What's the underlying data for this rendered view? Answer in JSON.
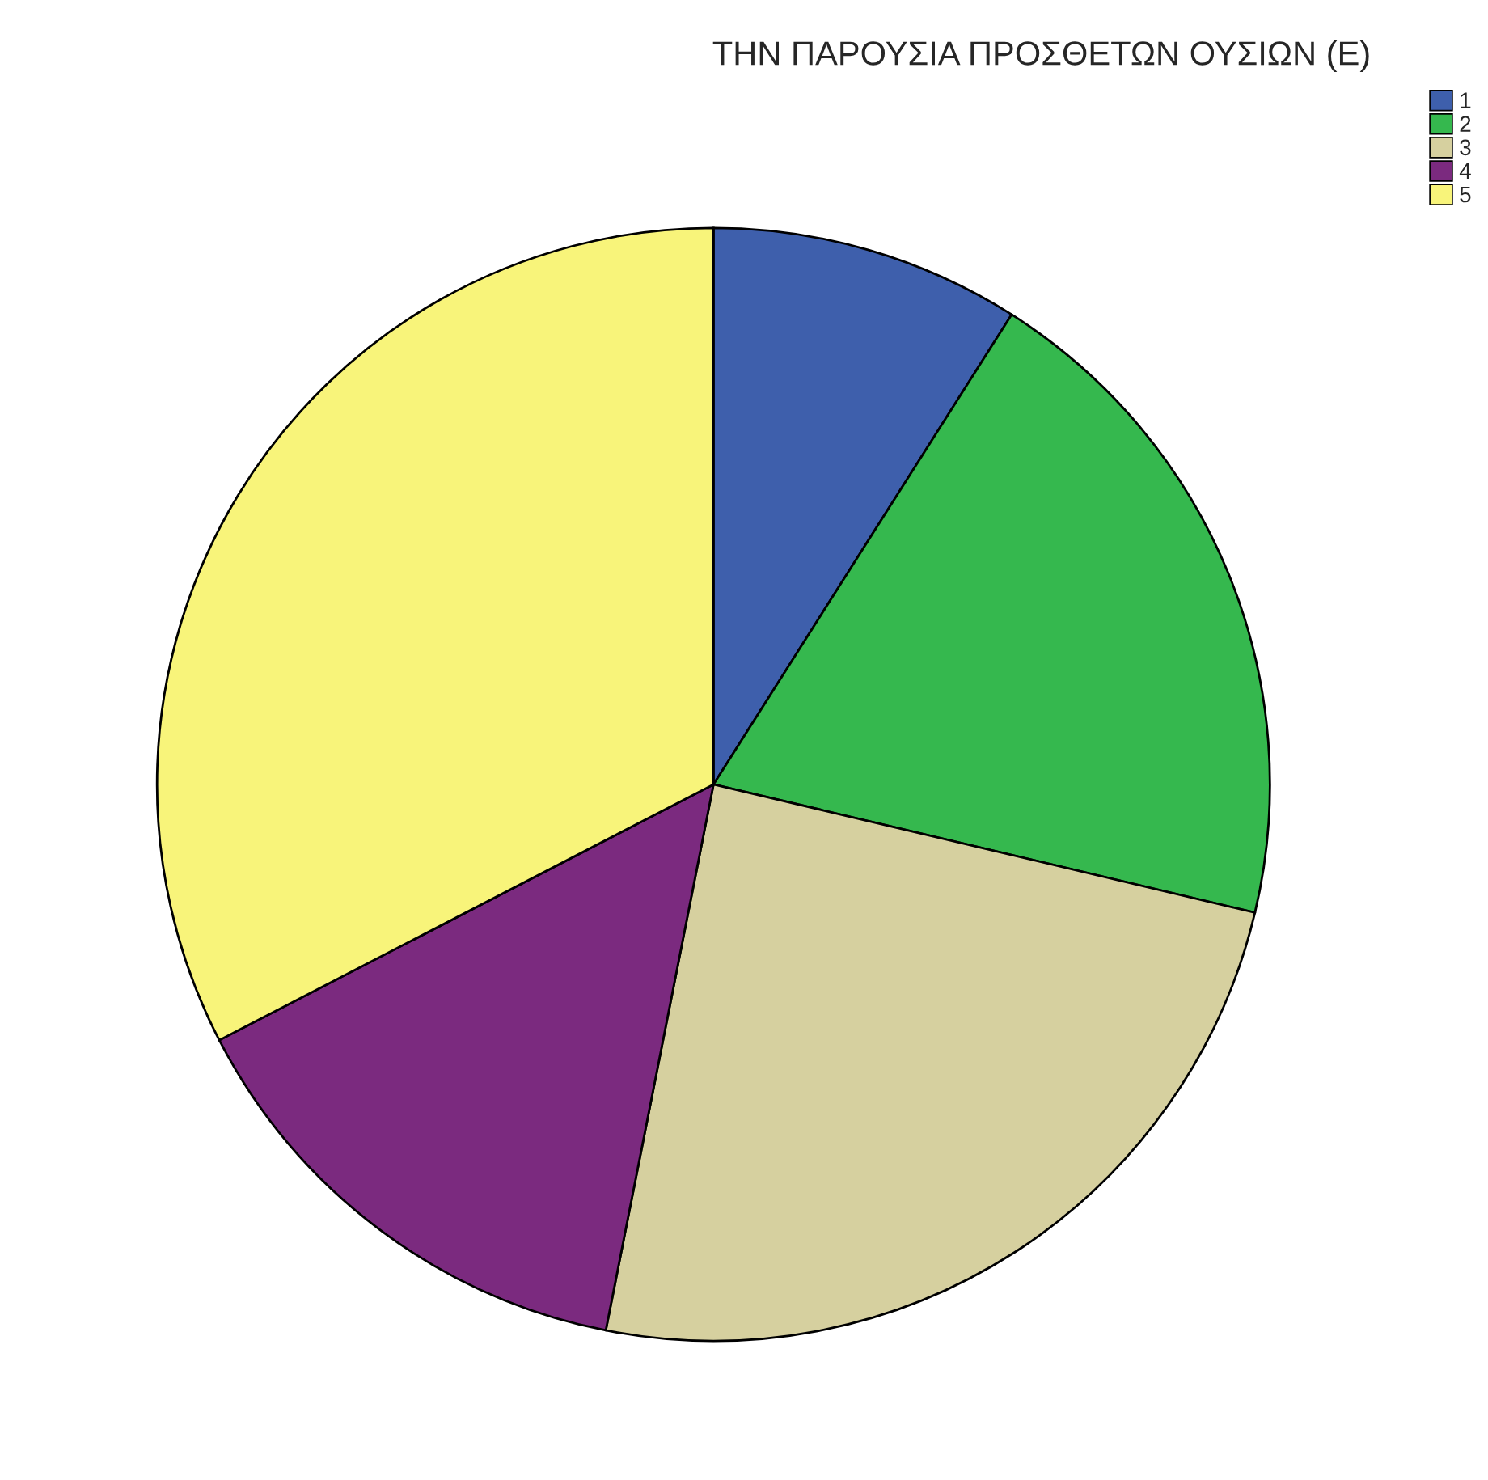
{
  "chart_data": {
    "type": "pie",
    "title": "ΤΗΝ ΠΑΡΟΥΣΙΑ ΠΡΟΣΘΕΤΩΝ ΟΥΣΙΩΝ (Ε)",
    "categories": [
      "1",
      "2",
      "3",
      "4",
      "5"
    ],
    "values": [
      9.0,
      19.7,
      24.4,
      14.3,
      32.6
    ],
    "colors": [
      "#3e5fac",
      "#35b84e",
      "#d6d09f",
      "#7b2a7f",
      "#f8f47a"
    ],
    "legend": "top right"
  }
}
